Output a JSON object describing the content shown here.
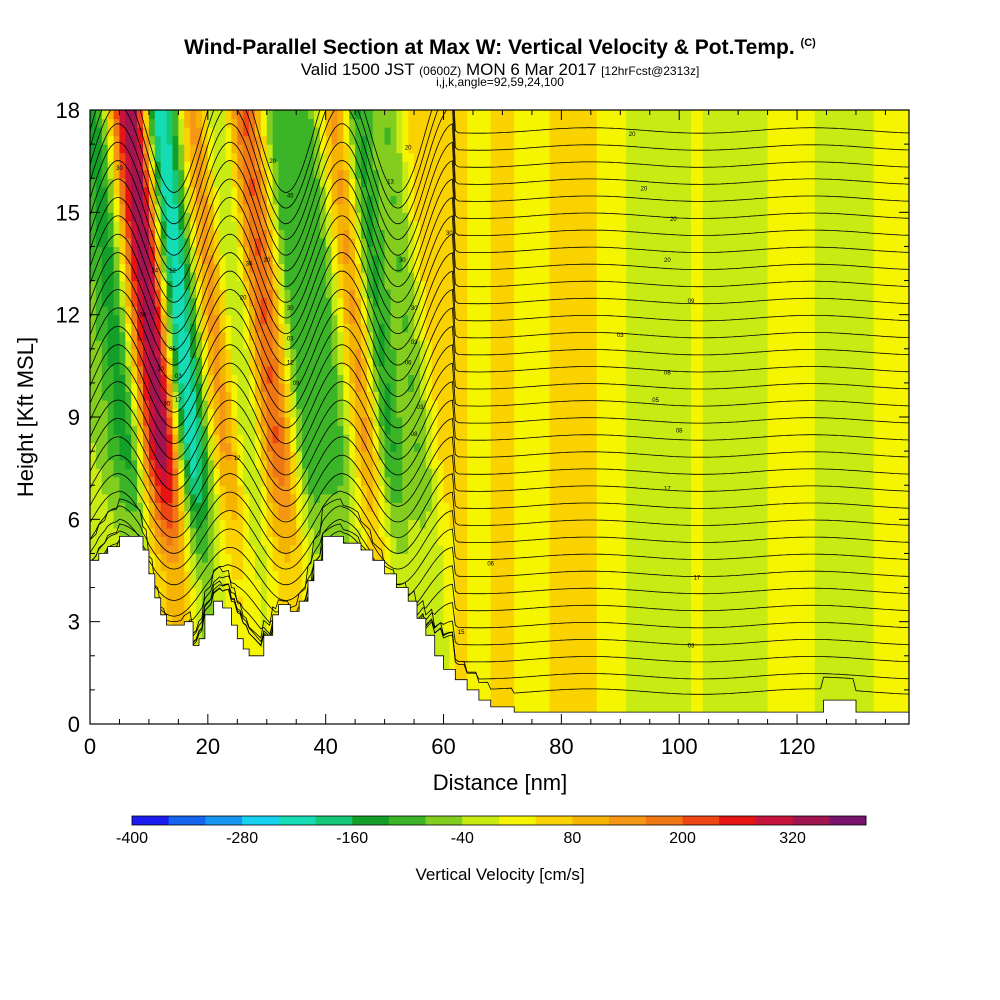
{
  "title": {
    "main": "Wind-Parallel Section at Max W: Vertical Velocity & Pot.Temp.",
    "copyright": "(C)",
    "valid_prefix": "Valid 1500 JST",
    "valid_utc": "(0600Z)",
    "valid_date": "MON 6 Mar 2017",
    "forecast": "[12hrFcst@2313z]",
    "indices": "i,j,k,angle=92,59,24,100"
  },
  "chart_data": {
    "type": "heatmap",
    "xlabel": "Distance [nm]",
    "ylabel": "Height [Kft MSL]",
    "xlim": [
      0,
      139
    ],
    "ylim": [
      0,
      18
    ],
    "x_ticks": [
      0,
      20,
      40,
      60,
      80,
      100,
      120
    ],
    "y_ticks": [
      0,
      3,
      6,
      9,
      12,
      15,
      18
    ],
    "colorbar": {
      "label": "Vertical Velocity [cm/s]",
      "tick_labels": [
        -400,
        -280,
        -160,
        -40,
        80,
        200,
        320
      ],
      "levels": [
        -400,
        -360,
        -320,
        -280,
        -240,
        -200,
        -160,
        -120,
        -80,
        -40,
        0,
        40,
        80,
        120,
        160,
        200,
        240,
        280,
        320,
        360,
        400
      ],
      "colors": [
        "#1c1cf0",
        "#1464f0",
        "#1496f0",
        "#14d2f0",
        "#14dcb4",
        "#14c878",
        "#14a028",
        "#3cb428",
        "#82cd1e",
        "#c8eb14",
        "#f5f500",
        "#fad200",
        "#f5b400",
        "#f59614",
        "#f07814",
        "#f04614",
        "#e61414",
        "#c8143c",
        "#a01450",
        "#78146e"
      ]
    },
    "velocity_bands": [
      {
        "x": 4,
        "w": 5,
        "v": -60
      },
      {
        "x": 8,
        "w": 3,
        "v": -130
      },
      {
        "x": 11,
        "w": 2.5,
        "v": 150
      },
      {
        "x": 14,
        "w": 2.8,
        "v": 310
      },
      {
        "x": 18,
        "w": 2.6,
        "v": -260
      },
      {
        "x": 21,
        "w": 2.2,
        "v": -80
      },
      {
        "x": 24,
        "w": 3,
        "v": 140
      },
      {
        "x": 28,
        "w": 2.5,
        "v": -90
      },
      {
        "x": 33,
        "w": 3.2,
        "v": 200
      },
      {
        "x": 38,
        "w": 3,
        "v": -130
      },
      {
        "x": 43,
        "w": 3,
        "v": -110
      },
      {
        "x": 48,
        "w": 2.5,
        "v": 130
      },
      {
        "x": 52,
        "w": 2.5,
        "v": -140
      },
      {
        "x": 57,
        "w": 2.5,
        "v": -90
      },
      {
        "x": 62,
        "w": 3,
        "v": 60
      },
      {
        "x": 70,
        "w": 4,
        "v": 70
      },
      {
        "x": 82,
        "w": 5,
        "v": 90
      },
      {
        "x": 96,
        "w": 5,
        "v": -50
      },
      {
        "x": 110,
        "w": 5,
        "v": -50
      },
      {
        "x": 128,
        "w": 5,
        "v": -50
      }
    ],
    "terrain": [
      [
        0,
        4.8
      ],
      [
        1.5,
        4.8
      ],
      [
        1.5,
        5
      ],
      [
        3,
        5
      ],
      [
        3,
        5.2
      ],
      [
        5,
        5.2
      ],
      [
        5,
        5.5
      ],
      [
        9,
        5.5
      ],
      [
        9,
        5.1
      ],
      [
        10,
        5.1
      ],
      [
        10,
        4.4
      ],
      [
        11,
        4.4
      ],
      [
        11,
        3.7
      ],
      [
        12,
        3.7
      ],
      [
        12,
        3.2
      ],
      [
        13,
        3.2
      ],
      [
        13,
        2.9
      ],
      [
        16,
        2.9
      ],
      [
        16,
        3.0
      ],
      [
        17.5,
        3.0
      ],
      [
        17.5,
        2.3
      ],
      [
        18.5,
        2.3
      ],
      [
        18.5,
        2.5
      ],
      [
        19.5,
        2.5
      ],
      [
        19.5,
        3.2
      ],
      [
        21,
        3.2
      ],
      [
        21,
        3.6
      ],
      [
        22.5,
        3.6
      ],
      [
        22.5,
        3.4
      ],
      [
        24,
        3.4
      ],
      [
        24,
        2.9
      ],
      [
        25,
        2.9
      ],
      [
        25,
        2.5
      ],
      [
        26,
        2.5
      ],
      [
        26,
        2.2
      ],
      [
        27,
        2.2
      ],
      [
        27,
        2.0
      ],
      [
        29.5,
        2.0
      ],
      [
        29.5,
        2.6
      ],
      [
        31,
        2.6
      ],
      [
        31,
        3.2
      ],
      [
        32,
        3.2
      ],
      [
        32,
        3.5
      ],
      [
        34,
        3.5
      ],
      [
        34,
        3.3
      ],
      [
        35.5,
        3.3
      ],
      [
        35.5,
        3.6
      ],
      [
        37,
        3.6
      ],
      [
        37,
        4.2
      ],
      [
        38,
        4.2
      ],
      [
        38,
        4.8
      ],
      [
        39.5,
        4.8
      ],
      [
        39.5,
        5.5
      ],
      [
        43,
        5.5
      ],
      [
        43,
        5.3
      ],
      [
        46,
        5.3
      ],
      [
        46,
        5.1
      ],
      [
        48,
        5.1
      ],
      [
        48,
        4.8
      ],
      [
        50,
        4.8
      ],
      [
        50,
        4.4
      ],
      [
        52,
        4.4
      ],
      [
        52,
        4.0
      ],
      [
        54,
        4.0
      ],
      [
        54,
        3.6
      ],
      [
        55.5,
        3.6
      ],
      [
        55.5,
        3.1
      ],
      [
        57,
        3.1
      ],
      [
        57,
        2.6
      ],
      [
        58.5,
        2.6
      ],
      [
        58.5,
        2.0
      ],
      [
        60,
        2.0
      ],
      [
        60,
        1.6
      ],
      [
        62,
        1.6
      ],
      [
        62,
        1.3
      ],
      [
        64,
        1.3
      ],
      [
        64,
        1.0
      ],
      [
        66,
        1.0
      ],
      [
        66,
        0.7
      ],
      [
        68,
        0.7
      ],
      [
        68,
        0.5
      ],
      [
        72,
        0.5
      ],
      [
        72,
        0.35
      ],
      [
        124.5,
        0.35
      ],
      [
        124.5,
        0.7
      ],
      [
        130,
        0.7
      ],
      [
        130,
        0.35
      ],
      [
        139,
        0.35
      ]
    ],
    "theta_contour_labels": [
      {
        "x": 5,
        "y": 16.3,
        "t": "30"
      },
      {
        "x": 11,
        "y": 13.3,
        "t": "24"
      },
      {
        "x": 14,
        "y": 13.3,
        "t": "12"
      },
      {
        "x": 9,
        "y": 12.0,
        "t": "30"
      },
      {
        "x": 14,
        "y": 11.0,
        "t": "05"
      },
      {
        "x": 12,
        "y": 10.4,
        "t": "30"
      },
      {
        "x": 15,
        "y": 10.2,
        "t": "03"
      },
      {
        "x": 13,
        "y": 9.4,
        "t": "30"
      },
      {
        "x": 15,
        "y": 9.5,
        "t": "17"
      },
      {
        "x": 31,
        "y": 16.5,
        "t": "20"
      },
      {
        "x": 34,
        "y": 15.5,
        "t": "45"
      },
      {
        "x": 27,
        "y": 13.5,
        "t": "36"
      },
      {
        "x": 30,
        "y": 13.6,
        "t": "30"
      },
      {
        "x": 26,
        "y": 12.5,
        "t": "20"
      },
      {
        "x": 34,
        "y": 12.2,
        "t": "30"
      },
      {
        "x": 34,
        "y": 11.3,
        "t": "03"
      },
      {
        "x": 34,
        "y": 10.6,
        "t": "12"
      },
      {
        "x": 35,
        "y": 10.0,
        "t": "09"
      },
      {
        "x": 25,
        "y": 7.8,
        "t": "12"
      },
      {
        "x": 54,
        "y": 16.9,
        "t": "20"
      },
      {
        "x": 51,
        "y": 15.9,
        "t": "13"
      },
      {
        "x": 61,
        "y": 14.4,
        "t": "30"
      },
      {
        "x": 53,
        "y": 13.6,
        "t": "30"
      },
      {
        "x": 55,
        "y": 12.2,
        "t": "30"
      },
      {
        "x": 55,
        "y": 11.2,
        "t": "03"
      },
      {
        "x": 54,
        "y": 10.6,
        "t": "06"
      },
      {
        "x": 56,
        "y": 9.3,
        "t": "03"
      },
      {
        "x": 55,
        "y": 8.5,
        "t": "08"
      },
      {
        "x": 92,
        "y": 17.3,
        "t": "20"
      },
      {
        "x": 94,
        "y": 15.7,
        "t": "20"
      },
      {
        "x": 99,
        "y": 14.8,
        "t": "20"
      },
      {
        "x": 98,
        "y": 13.6,
        "t": "20"
      },
      {
        "x": 102,
        "y": 12.4,
        "t": "09"
      },
      {
        "x": 90,
        "y": 11.4,
        "t": "03"
      },
      {
        "x": 98,
        "y": 10.3,
        "t": "08"
      },
      {
        "x": 96,
        "y": 9.5,
        "t": "05"
      },
      {
        "x": 100,
        "y": 8.6,
        "t": "08"
      },
      {
        "x": 98,
        "y": 6.9,
        "t": "17"
      },
      {
        "x": 68,
        "y": 4.7,
        "t": "06"
      },
      {
        "x": 103,
        "y": 4.3,
        "t": "17"
      },
      {
        "x": 63,
        "y": 2.7,
        "t": "15"
      },
      {
        "x": 102,
        "y": 2.3,
        "t": "03"
      }
    ]
  }
}
